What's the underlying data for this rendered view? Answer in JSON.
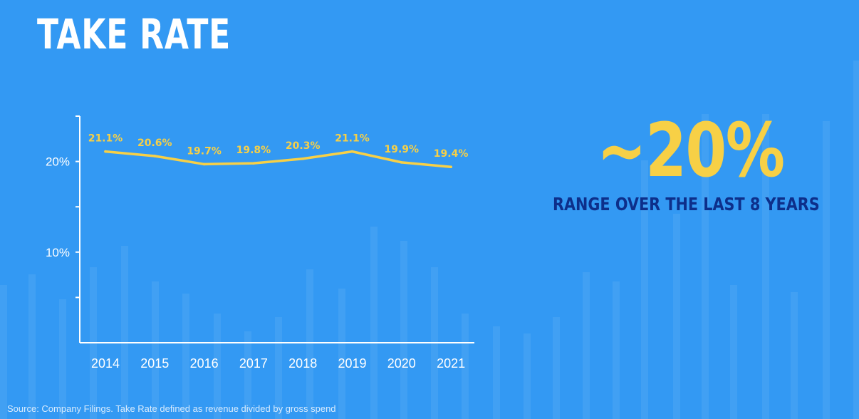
{
  "title": "TAKE RATE",
  "callout": {
    "value": "~20%",
    "caption": "RANGE OVER THE LAST 8 YEARS"
  },
  "source": "Source: Company Filings. Take Rate defined as revenue divided by gross spend",
  "colors": {
    "background": "#3399f3",
    "line": "#f7d046",
    "axis": "#ffffff",
    "caption": "#0d2f8a"
  },
  "chart_data": {
    "type": "line",
    "categories": [
      "2014",
      "2015",
      "2016",
      "2017",
      "2018",
      "2019",
      "2020",
      "2021"
    ],
    "series": [
      {
        "values": [
          21.1,
          20.6,
          19.7,
          19.8,
          20.3,
          21.1,
          19.9,
          19.4
        ]
      }
    ],
    "data_labels": [
      "21.1%",
      "20.6%",
      "19.7%",
      "19.8%",
      "20.3%",
      "21.1%",
      "19.9%",
      "19.4%"
    ],
    "y_ticks": [
      {
        "value": 10,
        "label": "10%"
      },
      {
        "value": 20,
        "label": "20%"
      }
    ],
    "ylim": [
      0,
      25
    ],
    "grid": false,
    "legend": "none",
    "xlabel": "",
    "ylabel": ""
  }
}
